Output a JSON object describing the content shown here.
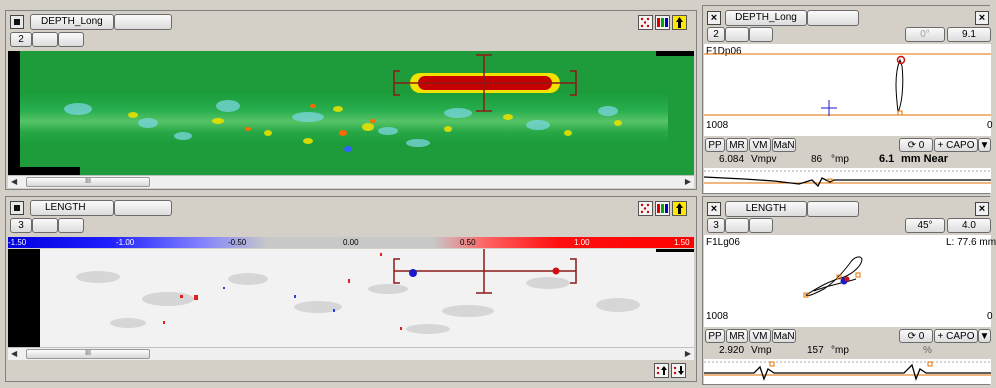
{
  "top_panel": {
    "channel_label": "DEPTH_Long",
    "page_number": "2",
    "scroll_thumb": "III",
    "icons": [
      "grid-dots-icon",
      "color-palette-icon",
      "yellow-pointer-icon"
    ]
  },
  "bottom_panel": {
    "channel_label": "LENGTH",
    "page_number": "3",
    "scroll_thumb": "III",
    "color_scale": [
      "-1.50",
      "-1.00",
      "-0.50",
      "0.00",
      "0.50",
      "1.00",
      "1.50"
    ],
    "icons": [
      "grid-dots-icon",
      "color-palette-icon",
      "yellow-pointer-icon"
    ],
    "bottom_icons": [
      "adjust-up-icon",
      "adjust-down-icon"
    ]
  },
  "right_top": {
    "channel_label": "DEPTH_Long",
    "page_number": "2",
    "angle_label": "0°",
    "value_label": "9.1",
    "signal_name": "F1Dp06",
    "corner_value": "0",
    "bottom_number": "1008",
    "buttons": [
      "PP",
      "MR",
      "VM",
      "MaN"
    ],
    "counter_label": "0",
    "capo_label": "+ CAPO",
    "reading_value": "6.084",
    "reading_unit": "Vmpv",
    "angle_value": "86",
    "angle_unit": "°mp",
    "depth_text": "6.1",
    "depth_unit": "mm Near"
  },
  "right_bottom": {
    "channel_label": "LENGTH",
    "page_number": "3",
    "angle_label": "45°",
    "value_label": "4.0",
    "signal_name": "F1Lg06",
    "length_label": "L: 77.6 mm",
    "corner_value": "0",
    "bottom_number": "1008",
    "buttons": [
      "PP",
      "MR",
      "VM",
      "MaN"
    ],
    "counter_label": "0",
    "capo_label": "+ CAPO",
    "reading_value": "2.920",
    "reading_unit": "Vmp",
    "angle_value": "157",
    "angle_unit": "°mp",
    "percent": "%"
  },
  "colors": {
    "strip_green": "#1f9b3a",
    "defect_red": "#c40000",
    "crosshair": "#8b1a1a",
    "trace_orange": "#e07000",
    "cursor_blue": "#1a1acc"
  }
}
